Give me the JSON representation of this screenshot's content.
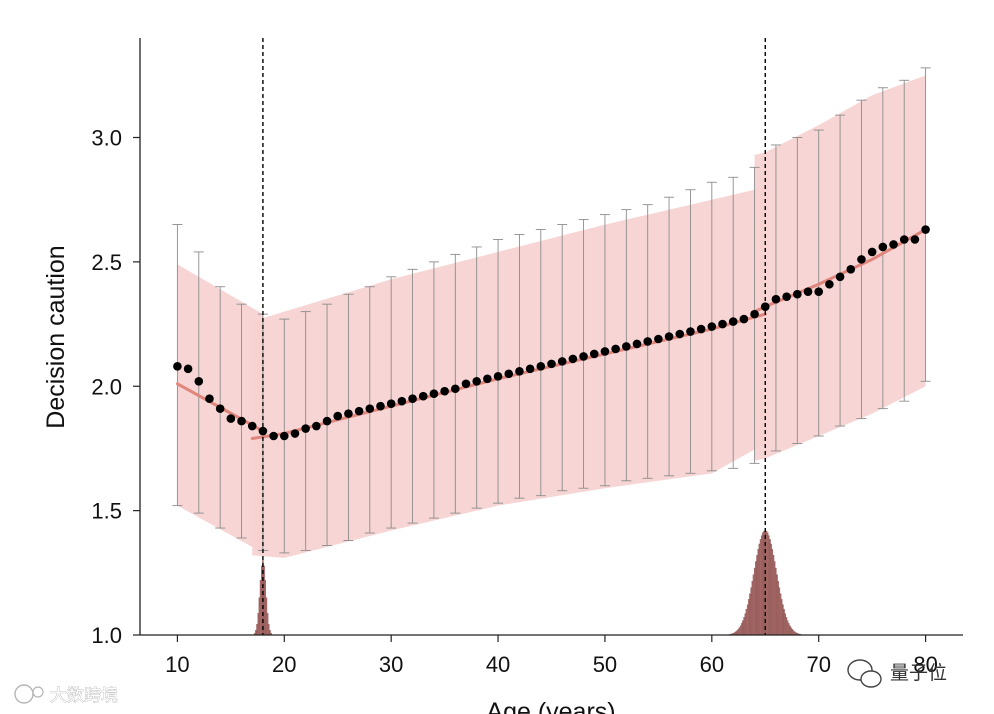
{
  "chart_data": {
    "type": "scatter",
    "title": "",
    "xlabel": "Age (years)",
    "ylabel": "Decision caution",
    "xlim": [
      6.5,
      83.5
    ],
    "ylim": [
      1.0,
      3.4
    ],
    "xticks": [
      "10",
      "20",
      "30",
      "40",
      "50",
      "60",
      "70",
      "80"
    ],
    "yticks": [
      "1.0",
      "1.5",
      "2.0",
      "2.5",
      "3.0"
    ],
    "breakpoints": [
      18,
      65
    ],
    "points": {
      "name": "Mean decision caution by age",
      "color": "#000000",
      "x": [
        10,
        11,
        12,
        13,
        14,
        15,
        16,
        17,
        18,
        19,
        20,
        21,
        22,
        23,
        24,
        25,
        26,
        27,
        28,
        29,
        30,
        31,
        32,
        33,
        34,
        35,
        36,
        37,
        38,
        39,
        40,
        41,
        42,
        43,
        44,
        45,
        46,
        47,
        48,
        49,
        50,
        51,
        52,
        53,
        54,
        55,
        56,
        57,
        58,
        59,
        60,
        61,
        62,
        63,
        64,
        65,
        66,
        67,
        68,
        69,
        70,
        71,
        72,
        73,
        74,
        75,
        76,
        77,
        78,
        79,
        80
      ],
      "y": [
        2.08,
        2.07,
        2.02,
        1.95,
        1.91,
        1.87,
        1.86,
        1.84,
        1.82,
        1.8,
        1.8,
        1.81,
        1.83,
        1.84,
        1.86,
        1.88,
        1.89,
        1.9,
        1.91,
        1.92,
        1.93,
        1.94,
        1.95,
        1.96,
        1.97,
        1.98,
        1.99,
        2.01,
        2.02,
        2.03,
        2.04,
        2.05,
        2.06,
        2.07,
        2.08,
        2.09,
        2.1,
        2.11,
        2.12,
        2.13,
        2.14,
        2.15,
        2.16,
        2.17,
        2.18,
        2.19,
        2.2,
        2.21,
        2.22,
        2.23,
        2.24,
        2.25,
        2.26,
        2.27,
        2.29,
        2.32,
        2.35,
        2.36,
        2.37,
        2.38,
        2.38,
        2.41,
        2.44,
        2.47,
        2.51,
        2.54,
        2.56,
        2.57,
        2.59,
        2.59,
        2.63
      ]
    },
    "error_bars": {
      "color": "#8c8c8c",
      "x": [
        10,
        12,
        14,
        16,
        18,
        20,
        22,
        24,
        26,
        28,
        30,
        32,
        34,
        36,
        38,
        40,
        42,
        44,
        46,
        48,
        50,
        52,
        54,
        56,
        58,
        60,
        62,
        64,
        66,
        68,
        70,
        72,
        74,
        76,
        78,
        80
      ],
      "low": [
        1.52,
        1.49,
        1.43,
        1.39,
        1.34,
        1.33,
        1.34,
        1.36,
        1.38,
        1.41,
        1.43,
        1.45,
        1.47,
        1.49,
        1.51,
        1.53,
        1.55,
        1.56,
        1.58,
        1.59,
        1.6,
        1.62,
        1.63,
        1.64,
        1.65,
        1.66,
        1.67,
        1.69,
        1.74,
        1.77,
        1.8,
        1.84,
        1.87,
        1.91,
        1.94,
        2.02
      ],
      "high": [
        2.65,
        2.54,
        2.4,
        2.33,
        2.29,
        2.27,
        2.3,
        2.33,
        2.37,
        2.4,
        2.44,
        2.47,
        2.5,
        2.53,
        2.56,
        2.59,
        2.61,
        2.63,
        2.65,
        2.67,
        2.69,
        2.71,
        2.73,
        2.76,
        2.79,
        2.82,
        2.84,
        2.88,
        2.97,
        3.0,
        3.03,
        3.09,
        3.15,
        3.2,
        3.23,
        3.28
      ]
    },
    "fit_segments": [
      {
        "name": "fit 10-18",
        "x": [
          10,
          18
        ],
        "y": [
          2.01,
          1.82
        ],
        "band_low": [
          1.52,
          1.33
        ],
        "band_high": [
          2.49,
          2.29
        ]
      },
      {
        "name": "fit 17-65",
        "x": [
          17,
          20,
          30,
          40,
          50,
          60,
          65
        ],
        "y": [
          1.79,
          1.81,
          1.92,
          2.03,
          2.13,
          2.23,
          2.29
        ],
        "band_low": [
          1.32,
          1.31,
          1.42,
          1.52,
          1.59,
          1.65,
          1.77
        ],
        "band_high": [
          2.26,
          2.3,
          2.43,
          2.54,
          2.65,
          2.75,
          2.8
        ]
      },
      {
        "name": "fit 64-80",
        "x": [
          64,
          65,
          70,
          75,
          80
        ],
        "y": [
          2.3,
          2.32,
          2.41,
          2.51,
          2.63
        ],
        "band_low": [
          1.7,
          1.71,
          1.8,
          1.89,
          2.0
        ],
        "band_high": [
          2.93,
          2.94,
          3.05,
          3.17,
          3.25
        ]
      }
    ],
    "fit_color": "#e0857c",
    "band_color": "#f6d1d0",
    "breakpoint_histograms": [
      {
        "center": 18,
        "peak": 1.3,
        "spread": 0.28
      },
      {
        "center": 65,
        "peak": 1.42,
        "spread": 1.05
      }
    ],
    "histogram_color": "#a86a68"
  },
  "watermarks": {
    "left": "大数跨境",
    "right": "量子位"
  }
}
